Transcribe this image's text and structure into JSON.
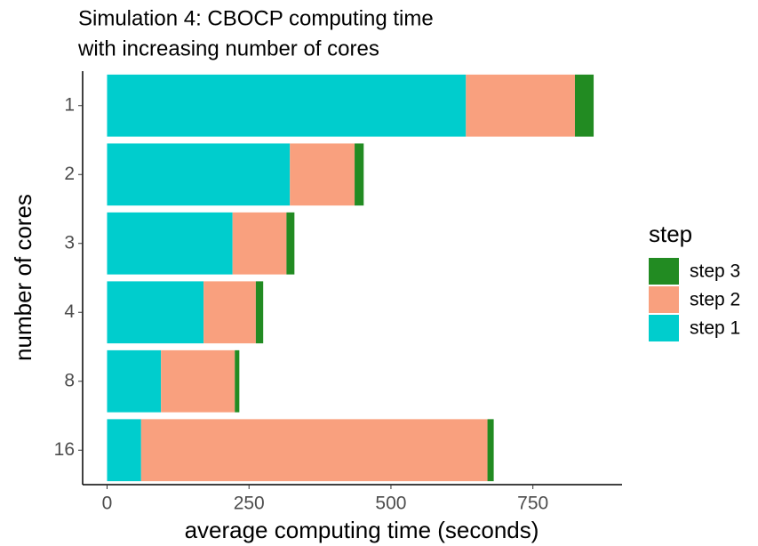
{
  "chart_data": {
    "type": "stacked-barh",
    "title": "Simulation 4: CBOCP computing time",
    "subtitle": "with increasing number of cores",
    "x_label": "average computing time (seconds)",
    "y_label": "number of cores",
    "categories": [
      "1",
      "2",
      "3",
      "4",
      "8",
      "16"
    ],
    "series": [
      {
        "name": "step 1",
        "color": "#00cdcd",
        "values": [
          632,
          322,
          221,
          170,
          95,
          60
        ]
      },
      {
        "name": "step 2",
        "color": "#f9a07e",
        "values": [
          192,
          114,
          95,
          92,
          130,
          610
        ]
      },
      {
        "name": "step 3",
        "color": "#228b22",
        "values": [
          33,
          16,
          14,
          13,
          8,
          11
        ]
      }
    ],
    "legend_title": "step",
    "legend": "right",
    "xlim": [
      -43,
      907
    ],
    "xticks": [
      0,
      250,
      500,
      750
    ],
    "grid": false
  }
}
